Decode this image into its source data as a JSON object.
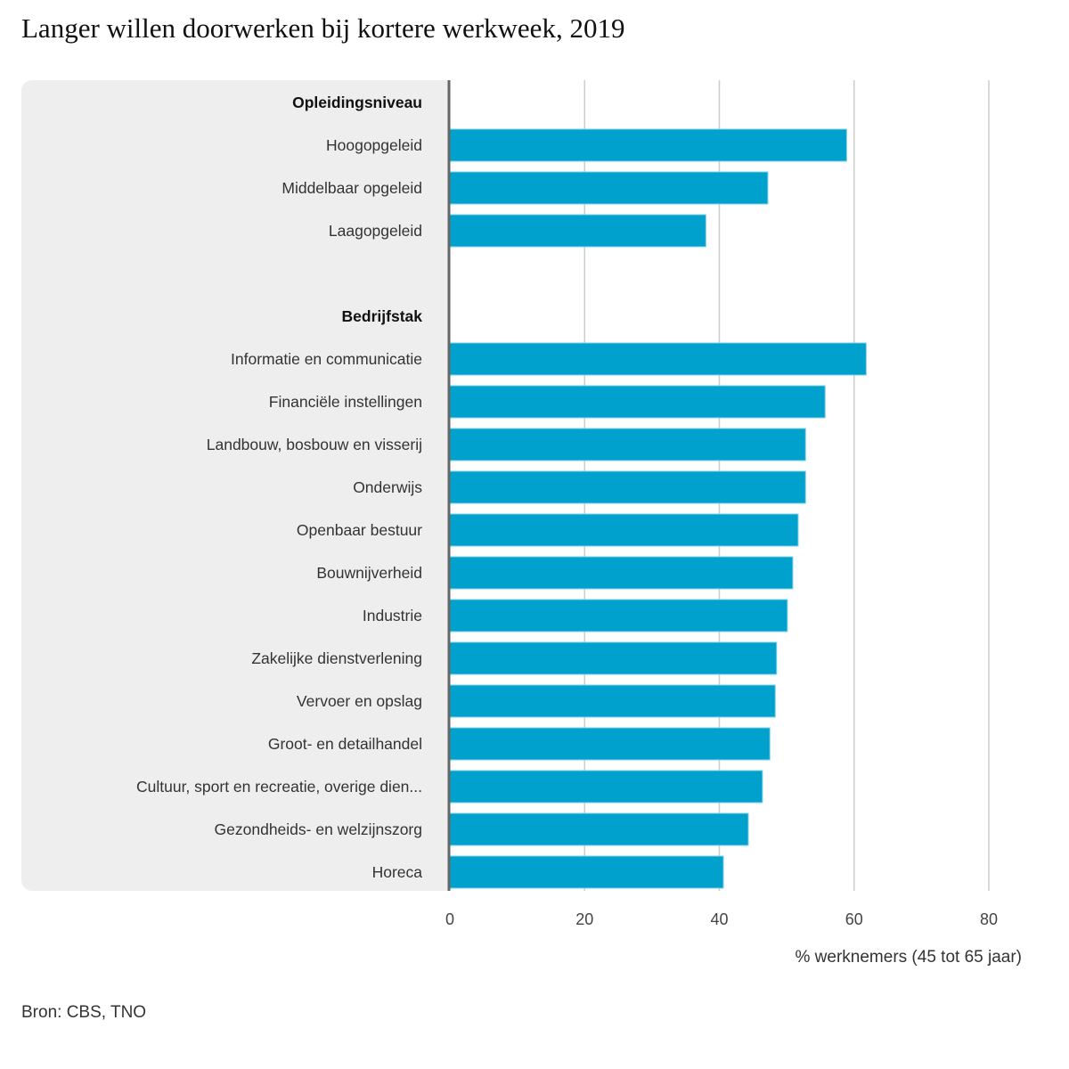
{
  "header": {
    "title": "Langer willen doorwerken bij kortere werkweek, 2019"
  },
  "footer": {
    "source": "Bron: CBS, TNO"
  },
  "chart_data": {
    "type": "bar",
    "orientation": "horizontal",
    "title": "Langer willen doorwerken bij kortere werkweek, 2019",
    "xlabel": "% werknemers (45 tot 65 jaar)",
    "ylabel": "",
    "xlim": [
      0,
      80
    ],
    "xticks": [
      0,
      20,
      40,
      60,
      80
    ],
    "grid": true,
    "bar_color": "#00a1cd",
    "groups": [
      {
        "name": "Opleidingsniveau",
        "categories": [
          "Hoogopgeleid",
          "Middelbaar opgeleid",
          "Laagopgeleid"
        ],
        "values": [
          58.9,
          47.2,
          38.0
        ]
      },
      {
        "name": "Bedrijfstak",
        "categories": [
          "Informatie en communicatie",
          "Financiële instellingen",
          "Landbouw, bosbouw en visserij",
          "Onderwijs",
          "Openbaar bestuur",
          "Bouwnijverheid",
          "Industrie",
          "Zakelijke dienstverlening",
          "Vervoer en opslag",
          "Groot- en detailhandel",
          "Cultuur, sport en recreatie, overige dien...",
          "Gezondheids- en welzijnszorg",
          "Horeca"
        ],
        "values": [
          61.8,
          55.7,
          52.8,
          52.8,
          51.7,
          50.9,
          50.1,
          48.5,
          48.3,
          47.5,
          46.4,
          44.3,
          40.6
        ]
      }
    ]
  }
}
